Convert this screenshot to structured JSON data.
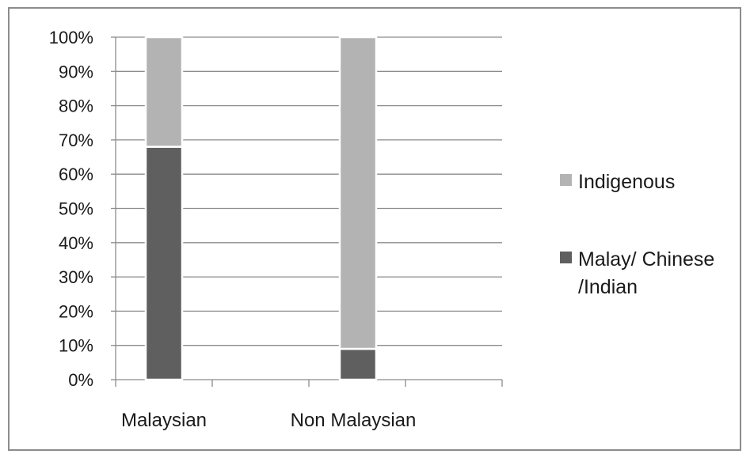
{
  "chart_data": {
    "type": "bar",
    "stacked": true,
    "percent": true,
    "categories": [
      "Malaysian",
      "Non Malaysian"
    ],
    "series": [
      {
        "name": "Malay/ Chinese /Indian",
        "values": [
          68,
          9
        ],
        "color": "#5f5f5f"
      },
      {
        "name": "Indigenous",
        "values": [
          32,
          91
        ],
        "color": "#b3b3b3"
      }
    ],
    "ylim": [
      0,
      100
    ],
    "yticks": [
      "0%",
      "10%",
      "20%",
      "30%",
      "40%",
      "50%",
      "60%",
      "70%",
      "80%",
      "90%",
      "100%"
    ],
    "grid": true,
    "legend_placement": "right",
    "legend": [
      {
        "label": "Indigenous",
        "color": "#b3b3b3"
      },
      {
        "label_lines": [
          "Malay/ Chinese",
          "/Indian"
        ],
        "color": "#5f5f5f"
      }
    ]
  }
}
